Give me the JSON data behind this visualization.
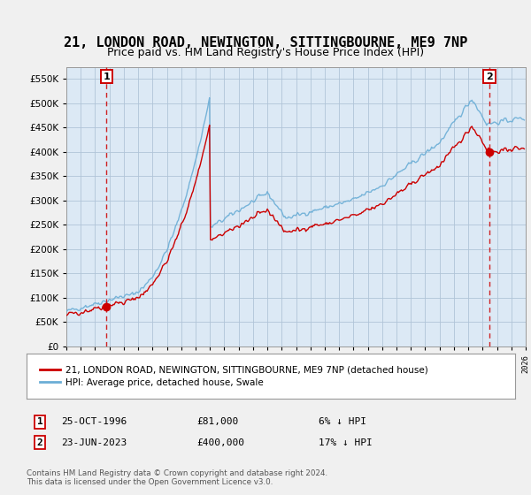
{
  "title": "21, LONDON ROAD, NEWINGTON, SITTINGBOURNE, ME9 7NP",
  "subtitle": "Price paid vs. HM Land Registry's House Price Index (HPI)",
  "ylim": [
    0,
    575000
  ],
  "yticks": [
    0,
    50000,
    100000,
    150000,
    200000,
    250000,
    300000,
    350000,
    400000,
    450000,
    500000,
    550000
  ],
  "ytick_labels": [
    "£0",
    "£50K",
    "£100K",
    "£150K",
    "£200K",
    "£250K",
    "£300K",
    "£350K",
    "£400K",
    "£450K",
    "£500K",
    "£550K"
  ],
  "hpi_color": "#6baed6",
  "price_color": "#cc0000",
  "dashed_color": "#cc0000",
  "background_color": "#f0f0f0",
  "plot_bg_color": "#dce9f5",
  "grid_color": "#b0c4d8",
  "legend_label_price": "21, LONDON ROAD, NEWINGTON, SITTINGBOURNE, ME9 7NP (detached house)",
  "legend_label_hpi": "HPI: Average price, detached house, Swale",
  "annotation1_label": "1",
  "annotation1_date": "25-OCT-1996",
  "annotation1_price": "£81,000",
  "annotation1_hpi": "6% ↓ HPI",
  "annotation1_year": 1996.8,
  "annotation1_value": 81000,
  "annotation2_label": "2",
  "annotation2_date": "23-JUN-2023",
  "annotation2_price": "£400,000",
  "annotation2_hpi": "17% ↓ HPI",
  "annotation2_year": 2023.47,
  "annotation2_value": 400000,
  "footer": "Contains HM Land Registry data © Crown copyright and database right 2024.\nThis data is licensed under the Open Government Licence v3.0.",
  "xmin": 1994,
  "xmax": 2026,
  "title_fontsize": 11,
  "subtitle_fontsize": 9
}
